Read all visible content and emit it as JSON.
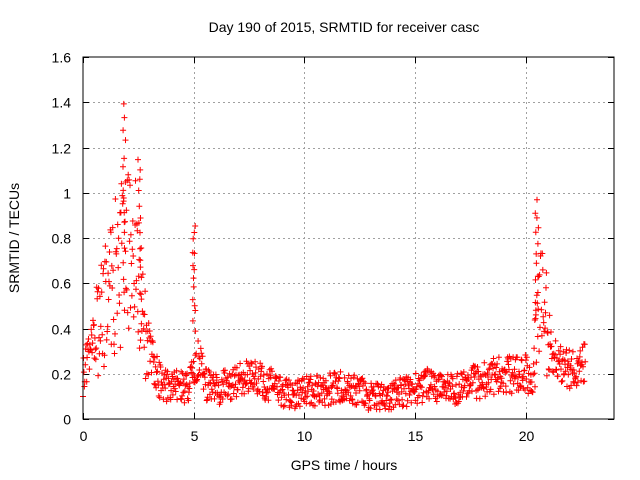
{
  "chart_data": {
    "type": "scatter",
    "title": "Day 190 of 2015, SRMTID for receiver casc",
    "xlabel": "GPS time / hours",
    "ylabel": "SRMTID / TECUs",
    "xlim": [
      0,
      24
    ],
    "ylim": [
      0,
      1.6
    ],
    "xticks": [
      "0",
      "5",
      "10",
      "15",
      "20"
    ],
    "xtick_values": [
      0,
      5,
      10,
      15,
      20
    ],
    "yticks": [
      "0",
      "0.2",
      "0.4",
      "0.6",
      "0.8",
      "1",
      "1.2",
      "1.4",
      "1.6"
    ],
    "ytick_values": [
      0,
      0.2,
      0.4,
      0.6,
      0.8,
      1.0,
      1.2,
      1.4,
      1.6
    ],
    "grid": true,
    "marker": "+",
    "color": "#ff0000",
    "x_range_observed": [
      0,
      22.7
    ],
    "trend": [
      [
        0.0,
        0.18
      ],
      [
        0.2,
        0.26
      ],
      [
        0.4,
        0.33
      ],
      [
        0.6,
        0.38
      ],
      [
        0.8,
        0.45
      ],
      [
        1.0,
        0.52
      ],
      [
        1.2,
        0.58
      ],
      [
        1.4,
        0.62
      ],
      [
        1.6,
        0.66
      ],
      [
        1.8,
        0.7
      ],
      [
        2.0,
        0.74
      ],
      [
        2.2,
        0.72
      ],
      [
        2.4,
        0.68
      ],
      [
        2.6,
        0.52
      ],
      [
        2.8,
        0.38
      ],
      [
        3.0,
        0.3
      ],
      [
        3.2,
        0.24
      ],
      [
        3.4,
        0.18
      ],
      [
        3.6,
        0.15
      ],
      [
        4.0,
        0.15
      ],
      [
        4.4,
        0.14
      ],
      [
        4.8,
        0.14
      ],
      [
        5.0,
        0.2
      ],
      [
        5.2,
        0.26
      ],
      [
        5.4,
        0.2
      ],
      [
        5.6,
        0.15
      ],
      [
        6.0,
        0.13
      ],
      [
        6.5,
        0.15
      ],
      [
        7.0,
        0.17
      ],
      [
        7.5,
        0.19
      ],
      [
        8.0,
        0.17
      ],
      [
        8.5,
        0.15
      ],
      [
        9.0,
        0.12
      ],
      [
        9.5,
        0.11
      ],
      [
        10.0,
        0.12
      ],
      [
        10.5,
        0.12
      ],
      [
        11.0,
        0.13
      ],
      [
        11.5,
        0.14
      ],
      [
        12.0,
        0.15
      ],
      [
        12.5,
        0.12
      ],
      [
        13.0,
        0.1
      ],
      [
        13.5,
        0.1
      ],
      [
        14.0,
        0.11
      ],
      [
        14.5,
        0.12
      ],
      [
        15.0,
        0.13
      ],
      [
        15.5,
        0.15
      ],
      [
        16.0,
        0.13
      ],
      [
        16.5,
        0.13
      ],
      [
        17.0,
        0.14
      ],
      [
        17.5,
        0.16
      ],
      [
        18.0,
        0.17
      ],
      [
        18.5,
        0.19
      ],
      [
        19.0,
        0.2
      ],
      [
        19.5,
        0.19
      ],
      [
        20.0,
        0.2
      ],
      [
        20.3,
        0.17
      ],
      [
        20.5,
        0.35
      ],
      [
        20.7,
        0.5
      ],
      [
        20.9,
        0.45
      ],
      [
        21.2,
        0.3
      ],
      [
        21.5,
        0.24
      ],
      [
        22.0,
        0.22
      ],
      [
        22.4,
        0.23
      ],
      [
        22.7,
        0.25
      ]
    ],
    "peaks": [
      {
        "x": 1.85,
        "y": 1.4
      },
      {
        "x": 2.55,
        "y": 1.15
      },
      {
        "x": 5.0,
        "y": 0.86
      },
      {
        "x": 20.5,
        "y": 0.97
      }
    ]
  }
}
